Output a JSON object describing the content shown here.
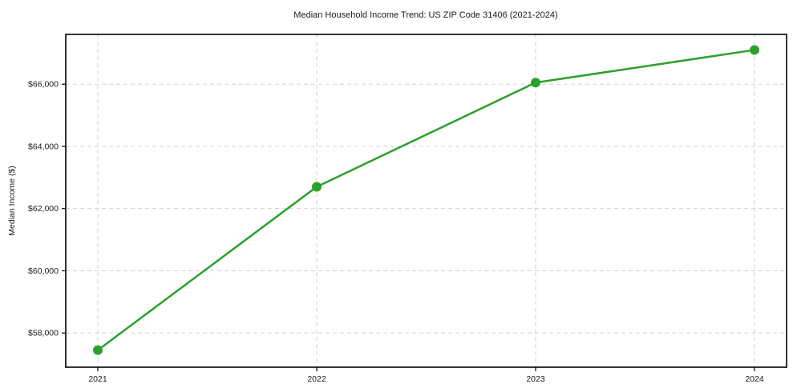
{
  "chart_data": {
    "type": "line",
    "title": "Median Household Income Trend: US ZIP Code 31406 (2021-2024)",
    "xlabel": "",
    "ylabel": "Median Income ($)",
    "categories": [
      "2021",
      "2022",
      "2023",
      "2024"
    ],
    "series": [
      {
        "name": "Median Household Income",
        "values": [
          57450,
          62700,
          66050,
          67100
        ],
        "color": "#2ca02c"
      }
    ],
    "ylim": [
      56900,
      67600
    ],
    "yticks": [
      58000,
      60000,
      62000,
      64000,
      66000
    ],
    "ytick_labels": [
      "$58,000",
      "$60,000",
      "$62,000",
      "$64,000",
      "$66,000"
    ],
    "grid": true,
    "grid_style": "dashed",
    "grid_color": "#cccccc",
    "spine_color": "#000000",
    "background_color": "#ffffff",
    "legend": false,
    "marker": "circle"
  }
}
